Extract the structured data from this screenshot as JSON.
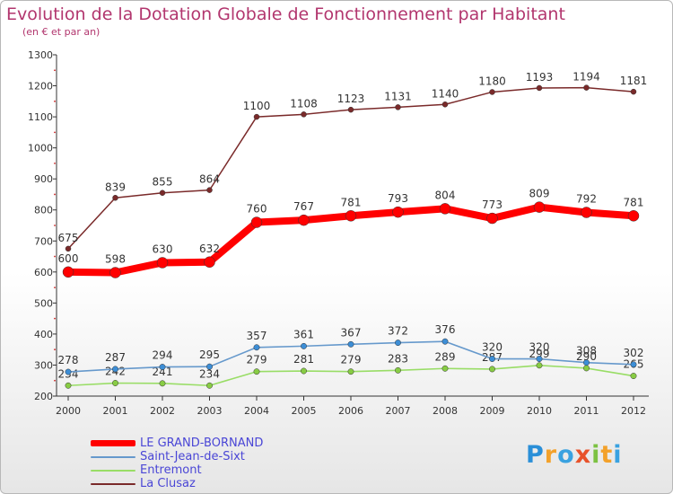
{
  "header": {
    "title": "Evolution de la Dotation Globale de Fonctionnement par Habitant",
    "subtitle": "(en € et par an)"
  },
  "legend": [
    {
      "label": "LE GRAND-BORNAND",
      "color": "#ff0000"
    },
    {
      "label": "Saint-Jean-de-Sixt",
      "color": "#6699cc"
    },
    {
      "label": "Entremont",
      "color": "#99dd66"
    },
    {
      "label": "La Clusaz",
      "color": "#7a2a2a"
    }
  ],
  "logo": {
    "letters": [
      "P",
      "r",
      "o",
      "x",
      "i",
      "t",
      "i"
    ],
    "colors": [
      "#2a8fd8",
      "#f3a12a",
      "#3aa2e0",
      "#e8522a",
      "#7cc242",
      "#f3a12a",
      "#3aa2e0"
    ]
  },
  "chart_data": {
    "type": "line",
    "title": "Evolution de la Dotation Globale de Fonctionnement par Habitant",
    "subtitle": "(en € et par an)",
    "x": [
      "2000",
      "2001",
      "2002",
      "2003",
      "2004",
      "2005",
      "2006",
      "2007",
      "2008",
      "2009",
      "2010",
      "2011",
      "2012"
    ],
    "ylim": [
      200,
      1300
    ],
    "yticks": [
      "200",
      "300",
      "400",
      "500",
      "600",
      "700",
      "800",
      "900",
      "1000",
      "1100",
      "1200",
      "1300"
    ],
    "grid": false,
    "legend_position": "bottom-left",
    "series": [
      {
        "name": "La Clusaz",
        "color": "#7a2a2a",
        "marker": "#7a2a2a",
        "values": [
          675,
          839,
          855,
          864,
          1100,
          1108,
          1123,
          1131,
          1140,
          1180,
          1193,
          1194,
          1181
        ]
      },
      {
        "name": "Entremont",
        "color": "#99dd66",
        "marker": "#88cc44",
        "values": [
          234,
          242,
          241,
          234,
          279,
          281,
          279,
          283,
          289,
          287,
          299,
          290,
          265
        ]
      },
      {
        "name": "Saint-Jean-de-Sixt",
        "color": "#6699cc",
        "marker": "#3d8ed6",
        "values": [
          278,
          287,
          294,
          295,
          357,
          361,
          367,
          372,
          376,
          320,
          320,
          308,
          302
        ]
      },
      {
        "name": "LE GRAND-BORNAND",
        "color": "#ff0000",
        "marker": "#ff0000",
        "values": [
          600,
          598,
          630,
          632,
          760,
          767,
          781,
          793,
          804,
          773,
          809,
          792,
          781
        ]
      }
    ]
  }
}
